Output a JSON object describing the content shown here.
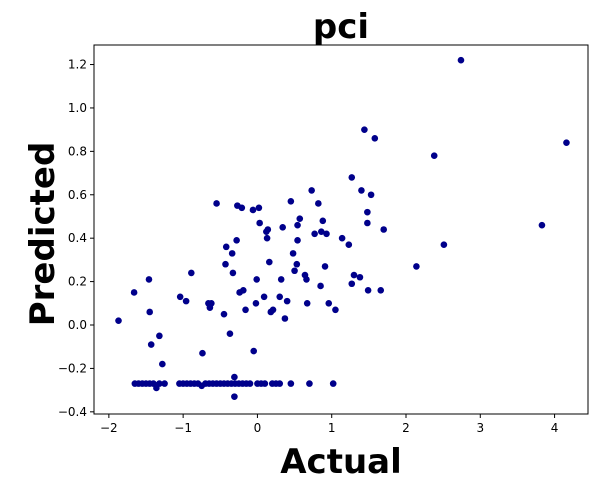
{
  "chart_data": {
    "type": "scatter",
    "title": "pci",
    "xlabel": "Actual",
    "ylabel": "Predicted",
    "xlim": [
      -2.2,
      4.45
    ],
    "ylim": [
      -0.41,
      1.29
    ],
    "xticks": [
      -2,
      -1,
      0,
      1,
      2,
      3,
      4
    ],
    "yticks": [
      -0.4,
      -0.2,
      0.0,
      0.2,
      0.4,
      0.6,
      0.8,
      1.0,
      1.2
    ],
    "xtick_labels": [
      "−2",
      "−1",
      "0",
      "1",
      "2",
      "3",
      "4"
    ],
    "ytick_labels": [
      "−0.4",
      "−0.2",
      "0.0",
      "0.2",
      "0.4",
      "0.6",
      "0.8",
      "1.0",
      "1.2"
    ],
    "grid": false,
    "marker_color": "#00008b",
    "points": [
      [
        -1.87,
        0.02
      ],
      [
        -1.66,
        0.15
      ],
      [
        -1.46,
        0.21
      ],
      [
        -1.45,
        0.06
      ],
      [
        -1.43,
        -0.09
      ],
      [
        -1.32,
        -0.05
      ],
      [
        -1.28,
        -0.18
      ],
      [
        -1.04,
        0.13
      ],
      [
        -0.96,
        0.11
      ],
      [
        -0.89,
        0.24
      ],
      [
        -0.74,
        -0.13
      ],
      [
        -0.66,
        0.1
      ],
      [
        -0.62,
        0.1
      ],
      [
        -0.64,
        0.08
      ],
      [
        -0.55,
        0.56
      ],
      [
        -0.43,
        0.28
      ],
      [
        -0.45,
        0.05
      ],
      [
        -0.42,
        0.36
      ],
      [
        -0.37,
        -0.04
      ],
      [
        -0.33,
        0.24
      ],
      [
        -0.34,
        0.33
      ],
      [
        -0.28,
        0.39
      ],
      [
        -0.27,
        0.55
      ],
      [
        -0.24,
        0.15
      ],
      [
        -0.21,
        0.54
      ],
      [
        -0.19,
        0.16
      ],
      [
        -0.16,
        0.07
      ],
      [
        -0.06,
        0.53
      ],
      [
        -0.05,
        -0.12
      ],
      [
        -0.02,
        0.1
      ],
      [
        0.02,
        0.54
      ],
      [
        -0.01,
        0.21
      ],
      [
        0.03,
        0.47
      ],
      [
        0.09,
        0.13
      ],
      [
        0.12,
        0.43
      ],
      [
        0.13,
        0.4
      ],
      [
        0.14,
        0.44
      ],
      [
        0.18,
        0.06
      ],
      [
        0.16,
        0.29
      ],
      [
        0.21,
        0.07
      ],
      [
        0.3,
        0.13
      ],
      [
        0.32,
        0.21
      ],
      [
        0.34,
        0.45
      ],
      [
        0.37,
        0.03
      ],
      [
        0.4,
        0.11
      ],
      [
        0.45,
        0.57
      ],
      [
        0.48,
        0.33
      ],
      [
        0.5,
        0.25
      ],
      [
        0.53,
        0.28
      ],
      [
        0.54,
        0.46
      ],
      [
        0.54,
        0.39
      ],
      [
        0.57,
        0.49
      ],
      [
        0.64,
        0.23
      ],
      [
        0.66,
        0.21
      ],
      [
        0.67,
        0.1
      ],
      [
        0.73,
        0.62
      ],
      [
        0.77,
        0.42
      ],
      [
        0.82,
        0.56
      ],
      [
        0.85,
        0.18
      ],
      [
        0.86,
        0.43
      ],
      [
        0.88,
        0.48
      ],
      [
        0.91,
        0.27
      ],
      [
        0.93,
        0.42
      ],
      [
        0.96,
        0.1
      ],
      [
        1.05,
        0.07
      ],
      [
        1.14,
        0.4
      ],
      [
        1.23,
        0.37
      ],
      [
        1.27,
        0.68
      ],
      [
        1.27,
        0.19
      ],
      [
        1.3,
        0.23
      ],
      [
        1.38,
        0.22
      ],
      [
        1.4,
        0.62
      ],
      [
        1.44,
        0.9
      ],
      [
        1.48,
        0.52
      ],
      [
        1.49,
        0.16
      ],
      [
        1.53,
        0.6
      ],
      [
        1.58,
        0.86
      ],
      [
        1.66,
        0.16
      ],
      [
        1.7,
        0.44
      ],
      [
        1.48,
        0.47
      ],
      [
        2.14,
        0.27
      ],
      [
        2.38,
        0.78
      ],
      [
        2.51,
        0.37
      ],
      [
        2.74,
        1.22
      ],
      [
        3.83,
        0.46
      ],
      [
        4.16,
        0.84
      ],
      [
        -1.65,
        -0.27
      ],
      [
        -1.6,
        -0.27
      ],
      [
        -1.55,
        -0.27
      ],
      [
        -1.5,
        -0.27
      ],
      [
        -1.45,
        -0.27
      ],
      [
        -1.4,
        -0.27
      ],
      [
        -1.36,
        -0.29
      ],
      [
        -1.32,
        -0.27
      ],
      [
        -1.25,
        -0.27
      ],
      [
        -1.05,
        -0.27
      ],
      [
        -1.0,
        -0.27
      ],
      [
        -0.95,
        -0.27
      ],
      [
        -0.9,
        -0.27
      ],
      [
        -0.85,
        -0.27
      ],
      [
        -0.8,
        -0.27
      ],
      [
        -0.75,
        -0.28
      ],
      [
        -0.7,
        -0.27
      ],
      [
        -0.65,
        -0.27
      ],
      [
        -0.6,
        -0.27
      ],
      [
        -0.55,
        -0.27
      ],
      [
        -0.5,
        -0.27
      ],
      [
        -0.45,
        -0.27
      ],
      [
        -0.4,
        -0.27
      ],
      [
        -0.35,
        -0.27
      ],
      [
        -0.31,
        -0.24
      ],
      [
        -0.31,
        -0.33
      ],
      [
        -0.3,
        -0.27
      ],
      [
        -0.25,
        -0.27
      ],
      [
        -0.2,
        -0.27
      ],
      [
        -0.15,
        -0.27
      ],
      [
        -0.1,
        -0.27
      ],
      [
        0.0,
        -0.27
      ],
      [
        0.05,
        -0.27
      ],
      [
        0.1,
        -0.27
      ],
      [
        0.2,
        -0.27
      ],
      [
        0.25,
        -0.27
      ],
      [
        0.3,
        -0.27
      ],
      [
        0.45,
        -0.27
      ],
      [
        0.7,
        -0.27
      ],
      [
        1.02,
        -0.27
      ]
    ]
  }
}
